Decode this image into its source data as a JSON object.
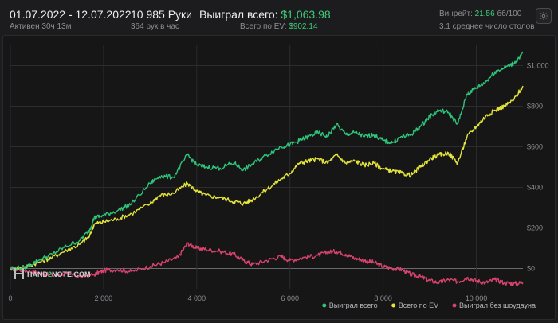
{
  "header": {
    "date_range": "01.07.2022 - 12.07.2022",
    "active_time": "Активен 30ч 13м",
    "hands": "10 985 Руки",
    "hands_per_hour": "364 рук в час",
    "won_total_label": "Выиграл всего:",
    "won_total_value": "$1,063.98",
    "ev_total_label": "Всего по EV:",
    "ev_total_value": "$902.14",
    "winrate_label": "Винрейт:",
    "winrate_value": "21.56",
    "winrate_unit": "бб/100",
    "avg_tables": "3.1 среднее число столов",
    "settings_icon": "gear-icon"
  },
  "watermark": {
    "logo_text_1": "HAND",
    "logo_text_2": "2",
    "logo_text_3": "NOTE.COM"
  },
  "chart_data": {
    "type": "line",
    "xlim": [
      0,
      11000
    ],
    "ylim": [
      -100,
      1100
    ],
    "x_ticks": [
      0,
      2000,
      4000,
      6000,
      8000,
      10000
    ],
    "x_tick_labels": [
      "0",
      "2 000",
      "4 000",
      "6 000",
      "8 000",
      "10 000"
    ],
    "y_ticks": [
      0,
      200,
      400,
      600,
      800,
      1000
    ],
    "y_tick_labels": [
      "$0",
      "$200",
      "$400",
      "$600",
      "$800",
      "$1,000"
    ],
    "grid": true,
    "legend_position": "bottom-right",
    "series": [
      {
        "name": "Выиграл всего",
        "color": "#2ec47a",
        "points": [
          [
            0,
            0
          ],
          [
            300,
            5
          ],
          [
            600,
            40
          ],
          [
            900,
            70
          ],
          [
            1200,
            110
          ],
          [
            1500,
            140
          ],
          [
            1700,
            190
          ],
          [
            1800,
            250
          ],
          [
            2000,
            262
          ],
          [
            2300,
            285
          ],
          [
            2600,
            320
          ],
          [
            3000,
            420
          ],
          [
            3200,
            455
          ],
          [
            3500,
            450
          ],
          [
            3800,
            560
          ],
          [
            4000,
            510
          ],
          [
            4200,
            500
          ],
          [
            4500,
            495
          ],
          [
            4800,
            520
          ],
          [
            5000,
            485
          ],
          [
            5200,
            515
          ],
          [
            5500,
            560
          ],
          [
            5800,
            600
          ],
          [
            6000,
            610
          ],
          [
            6200,
            630
          ],
          [
            6400,
            650
          ],
          [
            6600,
            670
          ],
          [
            6800,
            650
          ],
          [
            7000,
            710
          ],
          [
            7200,
            660
          ],
          [
            7400,
            670
          ],
          [
            7600,
            650
          ],
          [
            7800,
            660
          ],
          [
            8000,
            630
          ],
          [
            8200,
            620
          ],
          [
            8400,
            650
          ],
          [
            8600,
            660
          ],
          [
            8800,
            700
          ],
          [
            9000,
            750
          ],
          [
            9200,
            780
          ],
          [
            9400,
            770
          ],
          [
            9600,
            710
          ],
          [
            9800,
            860
          ],
          [
            10000,
            890
          ],
          [
            10200,
            920
          ],
          [
            10400,
            970
          ],
          [
            10600,
            990
          ],
          [
            10800,
            1010
          ],
          [
            11000,
            1060
          ]
        ]
      },
      {
        "name": "Всего по EV",
        "color": "#e4e43c",
        "points": [
          [
            0,
            0
          ],
          [
            300,
            5
          ],
          [
            600,
            30
          ],
          [
            900,
            55
          ],
          [
            1200,
            90
          ],
          [
            1500,
            120
          ],
          [
            1700,
            160
          ],
          [
            1800,
            220
          ],
          [
            2000,
            230
          ],
          [
            2300,
            245
          ],
          [
            2600,
            270
          ],
          [
            3000,
            320
          ],
          [
            3200,
            360
          ],
          [
            3500,
            370
          ],
          [
            3800,
            420
          ],
          [
            4000,
            380
          ],
          [
            4200,
            360
          ],
          [
            4500,
            350
          ],
          [
            4800,
            330
          ],
          [
            5000,
            320
          ],
          [
            5200,
            340
          ],
          [
            5500,
            390
          ],
          [
            5800,
            440
          ],
          [
            6000,
            470
          ],
          [
            6200,
            520
          ],
          [
            6400,
            530
          ],
          [
            6600,
            540
          ],
          [
            6800,
            520
          ],
          [
            7000,
            560
          ],
          [
            7200,
            520
          ],
          [
            7400,
            530
          ],
          [
            7600,
            510
          ],
          [
            7800,
            520
          ],
          [
            8000,
            490
          ],
          [
            8200,
            480
          ],
          [
            8400,
            470
          ],
          [
            8600,
            460
          ],
          [
            8800,
            500
          ],
          [
            9000,
            540
          ],
          [
            9200,
            560
          ],
          [
            9400,
            570
          ],
          [
            9600,
            520
          ],
          [
            9800,
            650
          ],
          [
            10000,
            700
          ],
          [
            10200,
            750
          ],
          [
            10400,
            780
          ],
          [
            10600,
            800
          ],
          [
            10800,
            830
          ],
          [
            11000,
            900
          ]
        ]
      },
      {
        "name": "Выиграл без шоудауна",
        "color": "#d9436e",
        "points": [
          [
            0,
            0
          ],
          [
            300,
            -10
          ],
          [
            600,
            -20
          ],
          [
            900,
            -35
          ],
          [
            1200,
            -25
          ],
          [
            1500,
            -40
          ],
          [
            1800,
            -30
          ],
          [
            2000,
            -10
          ],
          [
            2300,
            -5
          ],
          [
            2600,
            -15
          ],
          [
            3000,
            10
          ],
          [
            3300,
            30
          ],
          [
            3600,
            55
          ],
          [
            3800,
            125
          ],
          [
            4000,
            100
          ],
          [
            4200,
            95
          ],
          [
            4500,
            85
          ],
          [
            4800,
            70
          ],
          [
            5000,
            40
          ],
          [
            5200,
            20
          ],
          [
            5500,
            40
          ],
          [
            5800,
            60
          ],
          [
            6000,
            40
          ],
          [
            6300,
            55
          ],
          [
            6600,
            65
          ],
          [
            6800,
            80
          ],
          [
            7000,
            85
          ],
          [
            7200,
            70
          ],
          [
            7400,
            50
          ],
          [
            7600,
            40
          ],
          [
            7800,
            30
          ],
          [
            8000,
            10
          ],
          [
            8200,
            0
          ],
          [
            8400,
            -5
          ],
          [
            8600,
            -30
          ],
          [
            8800,
            -40
          ],
          [
            9000,
            -60
          ],
          [
            9200,
            -70
          ],
          [
            9400,
            -55
          ],
          [
            9600,
            -65
          ],
          [
            9800,
            -45
          ],
          [
            10000,
            -60
          ],
          [
            10200,
            -70
          ],
          [
            10400,
            -55
          ],
          [
            10600,
            -70
          ],
          [
            10800,
            -75
          ],
          [
            11000,
            -70
          ]
        ]
      }
    ]
  }
}
